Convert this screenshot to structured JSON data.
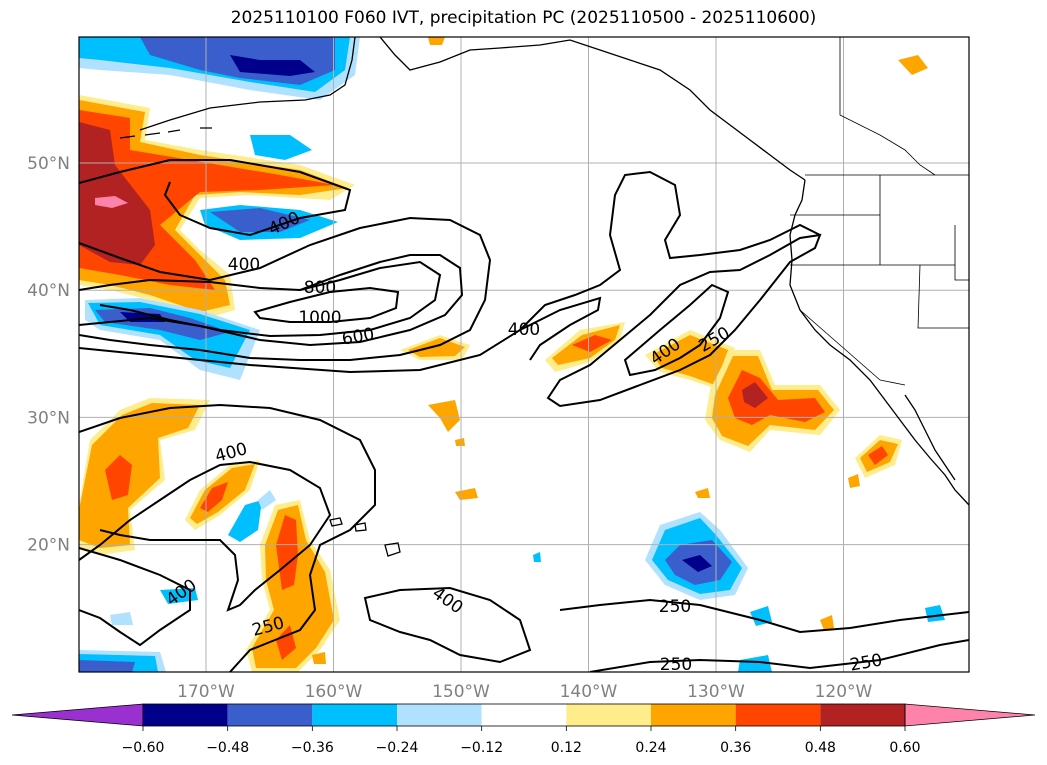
{
  "title": "2025110100 F060 IVT, precipitation PC (2025110500 - 2025110600)",
  "lon_ticks": [
    {
      "label": "170°W",
      "lon": -170
    },
    {
      "label": "160°W",
      "lon": -160
    },
    {
      "label": "150°W",
      "lon": -150
    },
    {
      "label": "140°W",
      "lon": -140
    },
    {
      "label": "130°W",
      "lon": -130
    },
    {
      "label": "120°W",
      "lon": -120
    }
  ],
  "lat_ticks": [
    {
      "label": "50°N",
      "lat": 50
    },
    {
      "label": "40°N",
      "lat": 40
    },
    {
      "label": "30°N",
      "lat": 30
    },
    {
      "label": "20°N",
      "lat": 20
    }
  ],
  "contour_labels": [
    "400",
    "400",
    "800",
    "1000",
    "600",
    "400",
    "400",
    "250",
    "400",
    "400",
    "250",
    "400",
    "250",
    "250",
    "250"
  ],
  "colorbar": {
    "colors": [
      "#9b30d0",
      "#00008b",
      "#3a5fcd",
      "#00bfff",
      "#b0e2ff",
      "#ffffff",
      "#ffec8b",
      "#ffa500",
      "#ff4500",
      "#b22222",
      "#ff82ab"
    ],
    "tick_labels": [
      "−0.60",
      "−0.48",
      "−0.36",
      "−0.24",
      "−0.12",
      "0.12",
      "0.24",
      "0.36",
      "0.48",
      "0.60"
    ]
  },
  "colors": {
    "grid": "#b0b0b0",
    "coast": "#000000",
    "contour": "#000000"
  }
}
